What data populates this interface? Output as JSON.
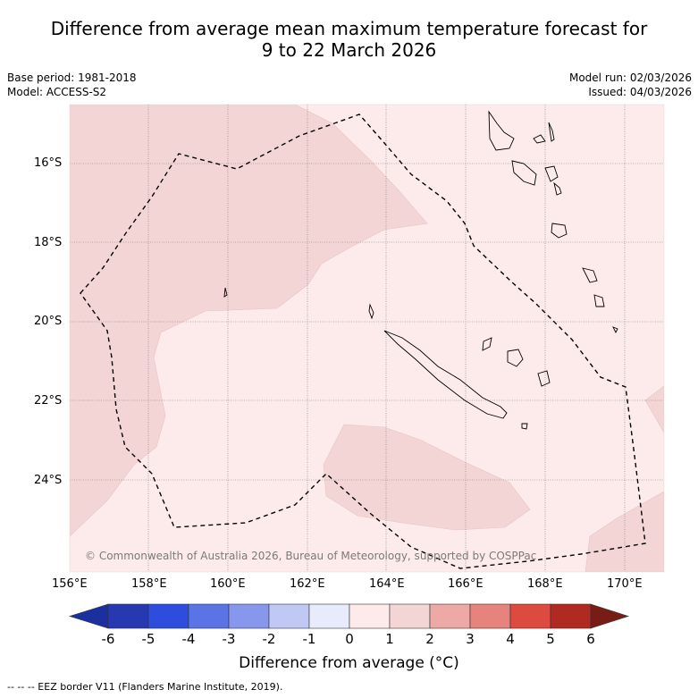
{
  "title": {
    "line1": "Difference from average mean maximum temperature forecast for",
    "line2": "9 to 22 March 2026"
  },
  "meta": {
    "base_period": "Base period: 1981-2018",
    "model": "Model: ACCESS-S2",
    "model_run": "Model run: 02/03/2026",
    "issued": "Issued: 04/03/2026"
  },
  "map": {
    "lat_labels": [
      "16°S",
      "18°S",
      "20°S",
      "22°S",
      "24°S"
    ],
    "lon_labels": [
      "156°E",
      "158°E",
      "160°E",
      "162°E",
      "164°E",
      "166°E",
      "168°E",
      "170°E"
    ],
    "copyright": "© Commonwealth of Australia 2026, Bureau of Meteorology, supported by COSPPac",
    "colors": {
      "anomaly_0_1": "#fcebea",
      "anomaly_1_2": "#f4d5d5",
      "coast": "#000000",
      "eez": "#000000",
      "grid": "#777777"
    }
  },
  "colorbar": {
    "ticks": [
      "-6",
      "-5",
      "-4",
      "-3",
      "-2",
      "-1",
      "0",
      "1",
      "2",
      "3",
      "4",
      "5",
      "6"
    ],
    "colors": [
      "#1c2f9e",
      "#2739b0",
      "#2e4ddf",
      "#5a74e6",
      "#8797ec",
      "#c0c8f4",
      "#e8ebfb",
      "#fcebea",
      "#f4d5d5",
      "#eda9a5",
      "#e6837c",
      "#dd4a40",
      "#b02a22",
      "#781c16"
    ],
    "label": "Difference from average (°C)"
  },
  "footer": "--  --  -- EEZ border V11 (Flanders Marine Institute, 2019)."
}
